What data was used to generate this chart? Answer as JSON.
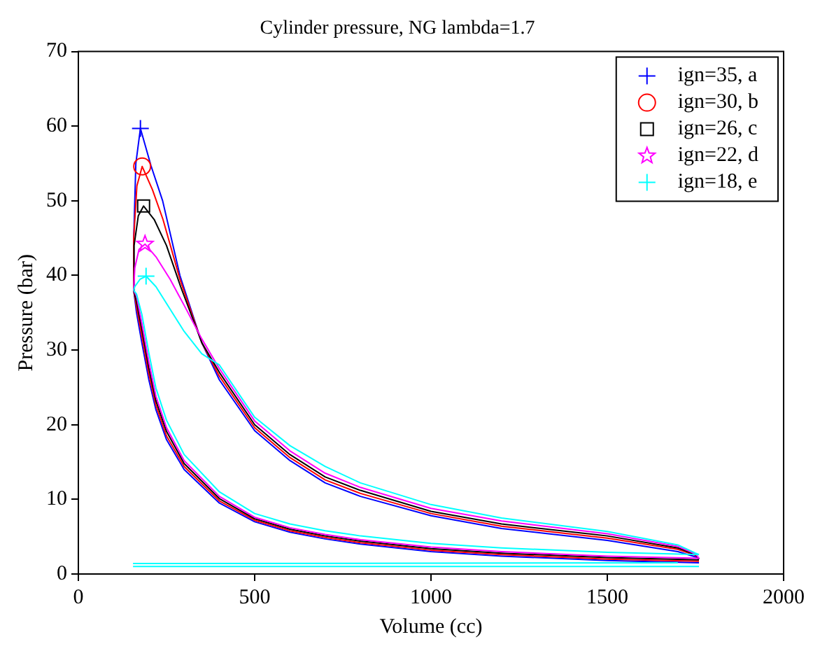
{
  "chart_data": {
    "type": "line",
    "title": "Cylinder pressure, NG lambda=1.7",
    "xlabel": "Volume (cc)",
    "ylabel": "Pressure (bar)",
    "xlim": [
      0,
      2000
    ],
    "xticks": [
      0,
      500,
      1000,
      1500,
      2000
    ],
    "ylim": [
      0,
      70
    ],
    "yticks": [
      0,
      10,
      20,
      30,
      40,
      50,
      60,
      70
    ],
    "grid": false,
    "legend": "top right",
    "series": [
      {
        "color": "#0000ff",
        "marker": "none",
        "x": [
          1760,
          1500,
          1200,
          1000,
          800,
          700,
          600,
          500,
          400,
          300,
          250,
          220,
          200,
          180,
          165,
          157,
          157,
          163,
          176,
          206,
          239,
          288,
          350,
          400,
          500,
          600,
          700,
          800,
          1000,
          1200,
          1500,
          1700,
          1750,
          1760
        ],
        "values": [
          1.5,
          1.8,
          2.4,
          3.0,
          4.0,
          4.7,
          5.6,
          7.0,
          9.5,
          14,
          18,
          22,
          26,
          31,
          35,
          38,
          45,
          55,
          59.7,
          54.7,
          50,
          40,
          31,
          26,
          19.2,
          15.2,
          12.2,
          10.4,
          7.8,
          6.1,
          4.5,
          3.0,
          2.3,
          2.0
        ]
      },
      {
        "color": "#ff0000",
        "marker": "none",
        "x": [
          1760,
          1500,
          1200,
          1000,
          800,
          700,
          600,
          500,
          400,
          300,
          250,
          220,
          200,
          180,
          165,
          157,
          157,
          166,
          181,
          210,
          240,
          288,
          350,
          400,
          500,
          600,
          700,
          800,
          1000,
          1200,
          1500,
          1700,
          1750,
          1760
        ],
        "values": [
          1.7,
          2.0,
          2.6,
          3.2,
          4.2,
          4.9,
          5.8,
          7.2,
          9.8,
          14.4,
          18.5,
          22.6,
          26.8,
          31.9,
          35.8,
          38,
          45,
          52,
          54.6,
          51.5,
          47.5,
          39.5,
          31,
          26.5,
          19.6,
          15.6,
          12.6,
          10.8,
          8.1,
          6.4,
          4.8,
          3.3,
          2.5,
          2.0
        ]
      },
      {
        "color": "#000000",
        "marker": "none",
        "x": [
          1760,
          1500,
          1200,
          1000,
          800,
          700,
          600,
          500,
          400,
          300,
          250,
          220,
          200,
          180,
          165,
          157,
          158,
          170,
          185,
          215,
          250,
          290,
          350,
          400,
          500,
          600,
          700,
          800,
          1000,
          1200,
          1500,
          1700,
          1750,
          1760
        ],
        "values": [
          1.9,
          2.2,
          2.8,
          3.4,
          4.4,
          5.1,
          6.0,
          7.4,
          10.1,
          14.8,
          19.1,
          23.2,
          27.6,
          32.8,
          36.5,
          38,
          44,
          48,
          49.3,
          47.5,
          44,
          38.5,
          31,
          27,
          20,
          16,
          13,
          11.2,
          8.4,
          6.7,
          5.1,
          3.5,
          2.6,
          2.0
        ]
      },
      {
        "color": "#ff00ff",
        "marker": "none",
        "x": [
          1760,
          1500,
          1200,
          1000,
          800,
          700,
          600,
          500,
          400,
          300,
          250,
          220,
          200,
          180,
          165,
          157
        ],
        "values": [
          2.1,
          2.4,
          3.0,
          3.6,
          4.6,
          5.3,
          6.2,
          7.6,
          10.4,
          15.2,
          19.6,
          23.8,
          28.4,
          33.6,
          37.2,
          38
        ]
      },
      {
        "color": "#ff00ff",
        "marker": "none",
        "x": [
          157,
          160,
          172,
          189,
          220,
          260,
          300,
          350,
          400,
          500,
          600,
          700,
          800,
          1000,
          1200,
          1500,
          1700,
          1750,
          1760
        ],
        "values": [
          38,
          41,
          43.5,
          44.2,
          42.5,
          39.5,
          36,
          31.5,
          27.5,
          20.5,
          16.5,
          13.5,
          11.6,
          8.8,
          7.1,
          5.4,
          3.7,
          2.7,
          2.1
        ]
      },
      {
        "color": "#00ffff",
        "marker": "none",
        "x": [
          1760,
          1500,
          1200,
          1000,
          800,
          700,
          600,
          500,
          400,
          300,
          250,
          220,
          200,
          180,
          165,
          157
        ],
        "values": [
          2.6,
          2.9,
          3.5,
          4.1,
          5.1,
          5.8,
          6.7,
          8.1,
          11.0,
          16.0,
          20.6,
          24.9,
          29.6,
          34.8,
          37.5,
          38
        ]
      },
      {
        "color": "#00ffff",
        "marker": "none",
        "x": [
          157,
          160,
          175,
          192,
          220,
          260,
          300,
          350,
          400,
          500,
          600,
          700,
          800,
          1000,
          1200,
          1500,
          1700,
          1750,
          1760
        ],
        "values": [
          38,
          38.5,
          39.5,
          39.9,
          38.5,
          35.5,
          32.5,
          29.5,
          28,
          21,
          17.2,
          14.4,
          12.2,
          9.3,
          7.5,
          5.7,
          3.9,
          2.8,
          2.6
        ]
      },
      {
        "color": "#00ffff",
        "marker": "none",
        "x": [
          1700,
          155
        ],
        "values": [
          1.5,
          1.4
        ]
      },
      {
        "color": "#00ffff",
        "marker": "none",
        "x": [
          155,
          1760
        ],
        "values": [
          1.0,
          1.0
        ]
      },
      {
        "type": "scatter",
        "name": "ign=35, a",
        "color": "#0000ff",
        "marker": "cross",
        "x": [
          176
        ],
        "values": [
          59.7
        ]
      },
      {
        "type": "scatter",
        "name": "ign=30, b",
        "color": "#ff0000",
        "marker": "circle",
        "x": [
          181
        ],
        "values": [
          54.6
        ]
      },
      {
        "type": "scatter",
        "name": "ign=26, c",
        "color": "#000000",
        "marker": "square",
        "x": [
          185
        ],
        "values": [
          49.3
        ]
      },
      {
        "type": "scatter",
        "name": "ign=22, d",
        "color": "#ff00ff",
        "marker": "star",
        "x": [
          189
        ],
        "values": [
          44.2
        ]
      },
      {
        "type": "scatter",
        "name": "ign=18, e",
        "color": "#00ffff",
        "marker": "cross",
        "x": [
          192
        ],
        "values": [
          39.9
        ]
      }
    ]
  }
}
